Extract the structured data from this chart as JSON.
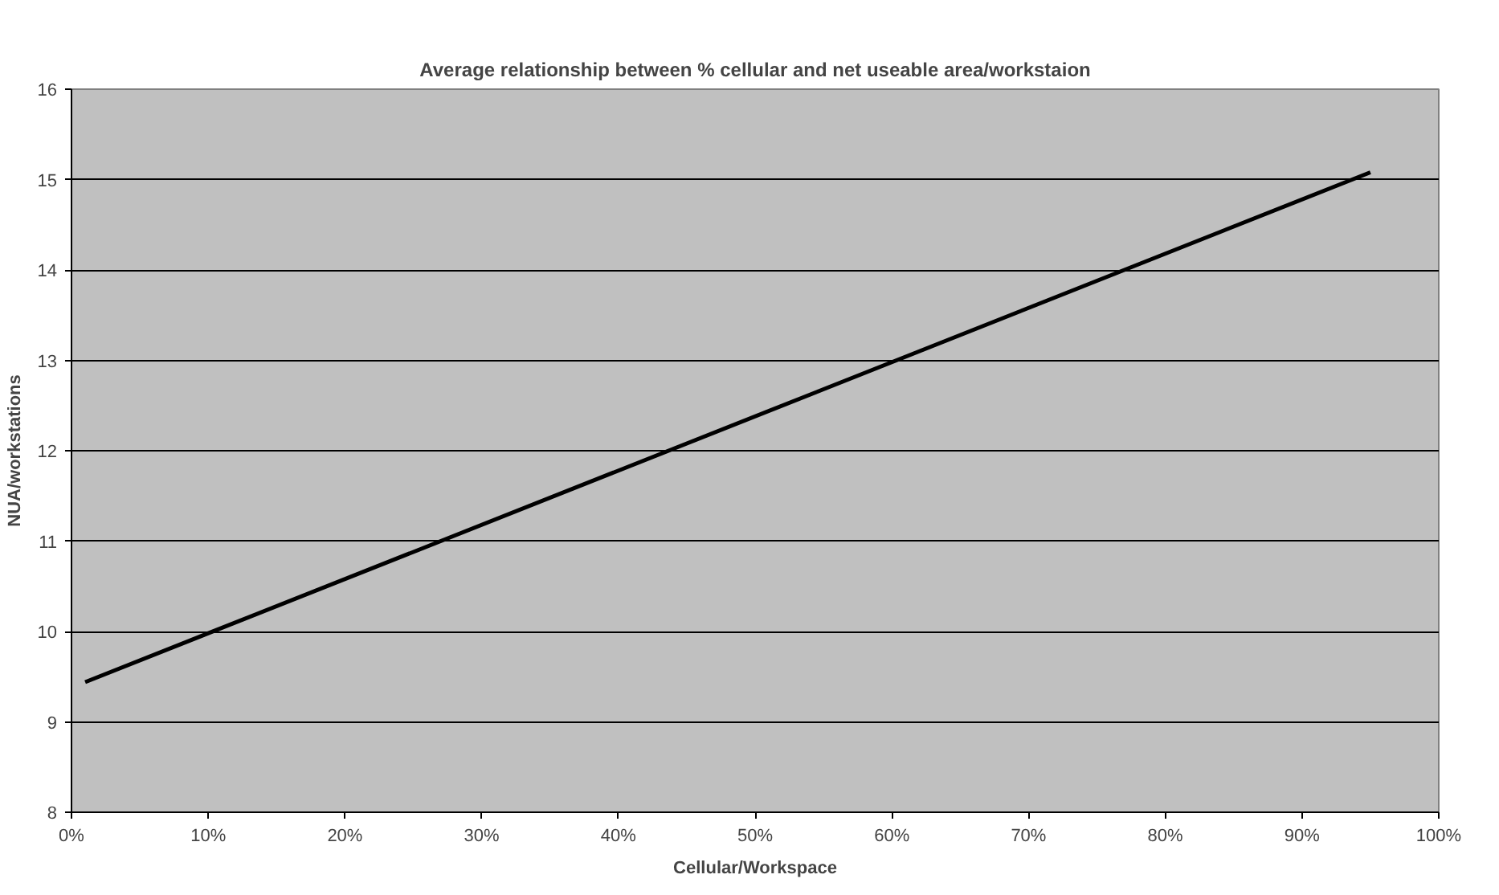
{
  "chart_data": {
    "type": "line",
    "title": "Average relationship between % cellular and net useable area/workstaion",
    "xlabel": "Cellular/Workspace",
    "ylabel": "NUA/workstations",
    "x": [
      0.01,
      0.95
    ],
    "series": [
      {
        "color": "#000000",
        "values": [
          9.44,
          15.08
        ]
      }
    ],
    "xlim": [
      0,
      1
    ],
    "xticks": [
      {
        "value": 0,
        "label": "0%"
      },
      {
        "value": 0.1,
        "label": "10%"
      },
      {
        "value": 0.2,
        "label": "20%"
      },
      {
        "value": 0.3,
        "label": "30%"
      },
      {
        "value": 0.4,
        "label": "40%"
      },
      {
        "value": 0.5,
        "label": "50%"
      },
      {
        "value": 0.6,
        "label": "60%"
      },
      {
        "value": 0.7,
        "label": "70%"
      },
      {
        "value": 0.8,
        "label": "80%"
      },
      {
        "value": 0.9,
        "label": "90%"
      },
      {
        "value": 1,
        "label": "100%"
      }
    ],
    "ylim": [
      8,
      16
    ],
    "yticks": [
      8,
      9,
      10,
      11,
      12,
      13,
      14,
      15,
      16
    ],
    "grid": "y",
    "marker": "none",
    "line_style": "solid"
  }
}
